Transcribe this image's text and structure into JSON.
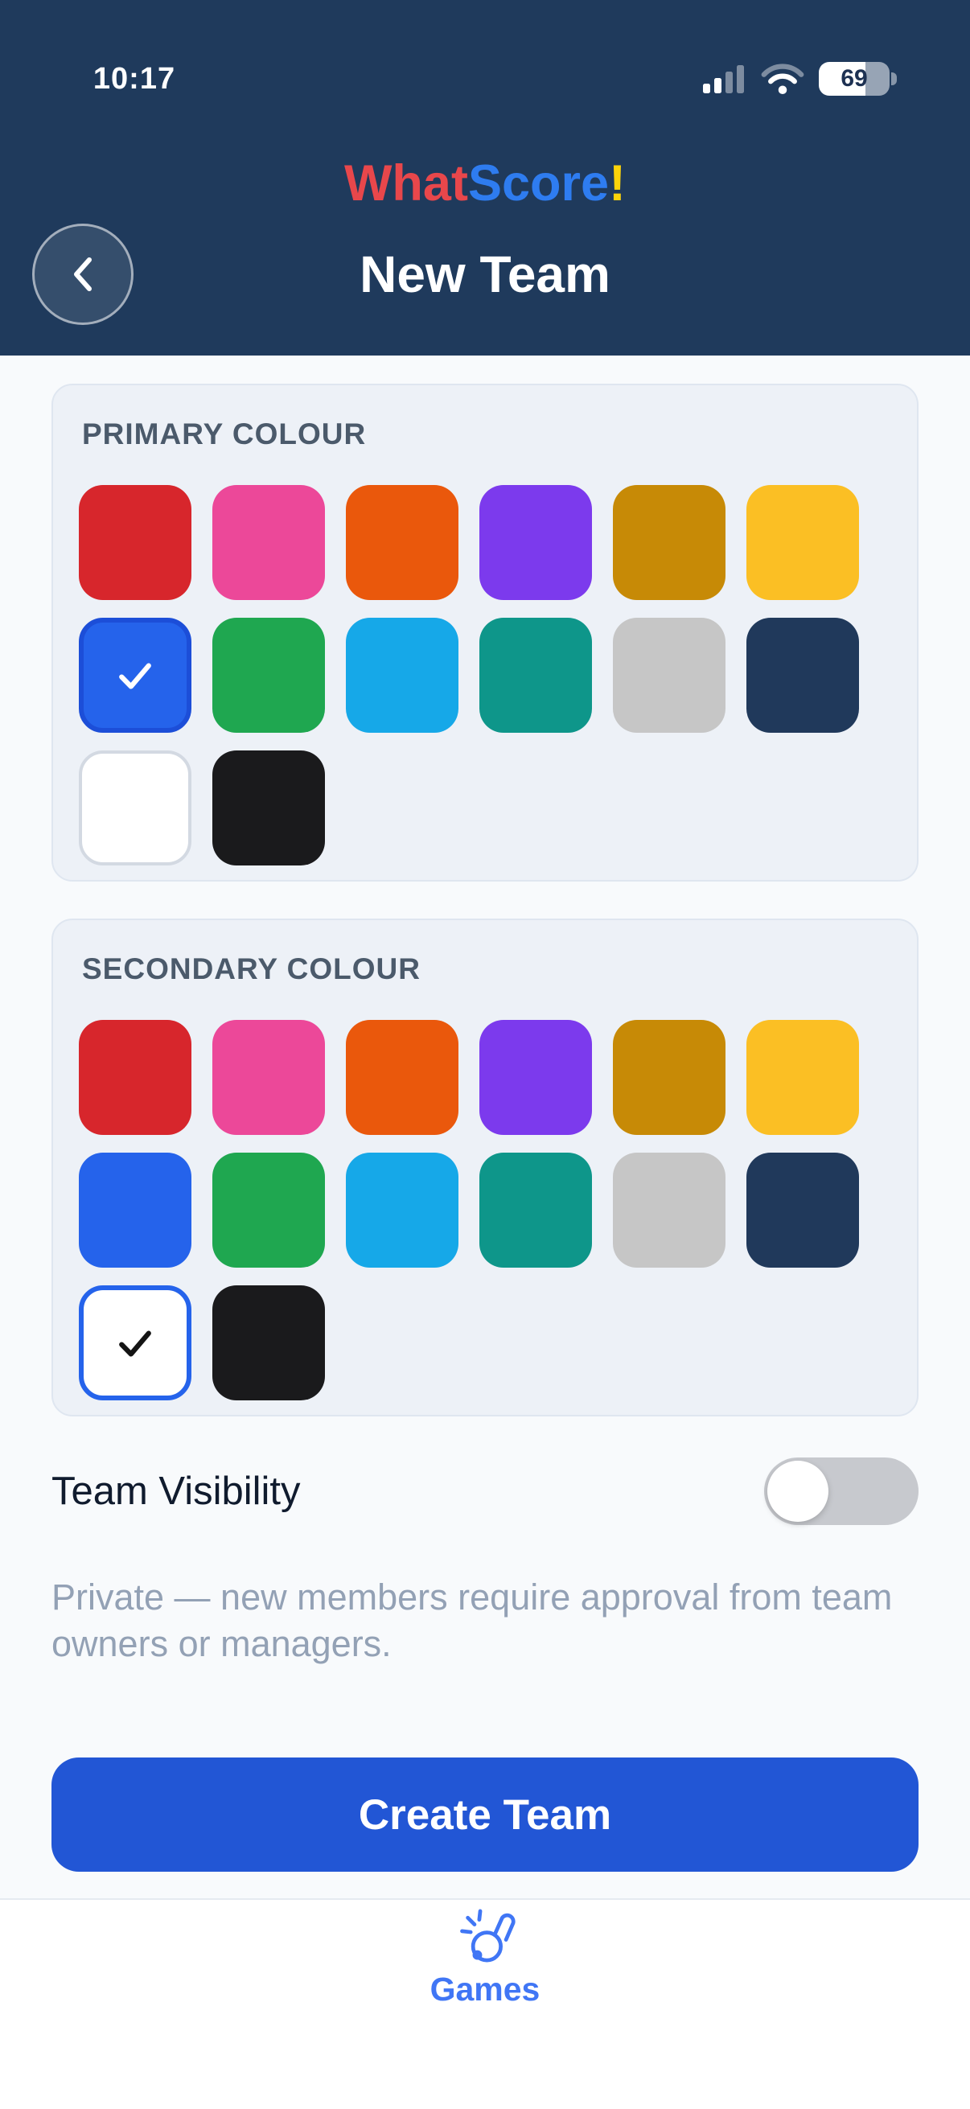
{
  "status_bar": {
    "time": "10:17",
    "battery_level": "69"
  },
  "header": {
    "logo": {
      "part1": "What",
      "part2": "Score",
      "part3": "!"
    },
    "title": "New Team"
  },
  "palette_names": [
    "red",
    "pink",
    "orange",
    "purple",
    "gold",
    "yellow",
    "blue",
    "green",
    "sky-blue",
    "teal",
    "gray",
    "navy",
    "white",
    "black"
  ],
  "palette_hex": [
    "#d7262c",
    "#ec4899",
    "#ea580c",
    "#7c3aed",
    "#c78a06",
    "#fbbf24",
    "#2563eb",
    "#1fa750",
    "#16a8e8",
    "#0e968a",
    "#c6c6c6",
    "#20395b",
    "#ffffff",
    "#1a1a1c"
  ],
  "primary_section": {
    "heading": "PRIMARY COLOUR",
    "selected": {
      "index": 6,
      "name": "blue",
      "border_color": "#1c4ed8",
      "check_color": "#ffffff"
    }
  },
  "secondary_section": {
    "heading": "SECONDARY COLOUR",
    "selected": {
      "index": 12,
      "name": "white",
      "border_color": "#2563eb",
      "check_color": "#141414"
    }
  },
  "visibility": {
    "label": "Team Visibility",
    "toggle_state": "off",
    "description": "Private — new members require approval from team owners or managers."
  },
  "create_button": {
    "label": "Create Team"
  },
  "tab_bar": {
    "items": [
      {
        "label": "Games",
        "icon": "whistle-icon"
      }
    ]
  },
  "theme": {
    "header_bg": "#1f3a5c",
    "page_bg": "#f8fafc",
    "card_bg": "#edf1f7",
    "accent_blue": "#2256d5",
    "tab_blue": "#4076f5",
    "logo_red": "#e8474b",
    "logo_blue": "#2e7cf0",
    "logo_yellow": "#fbd30a"
  }
}
